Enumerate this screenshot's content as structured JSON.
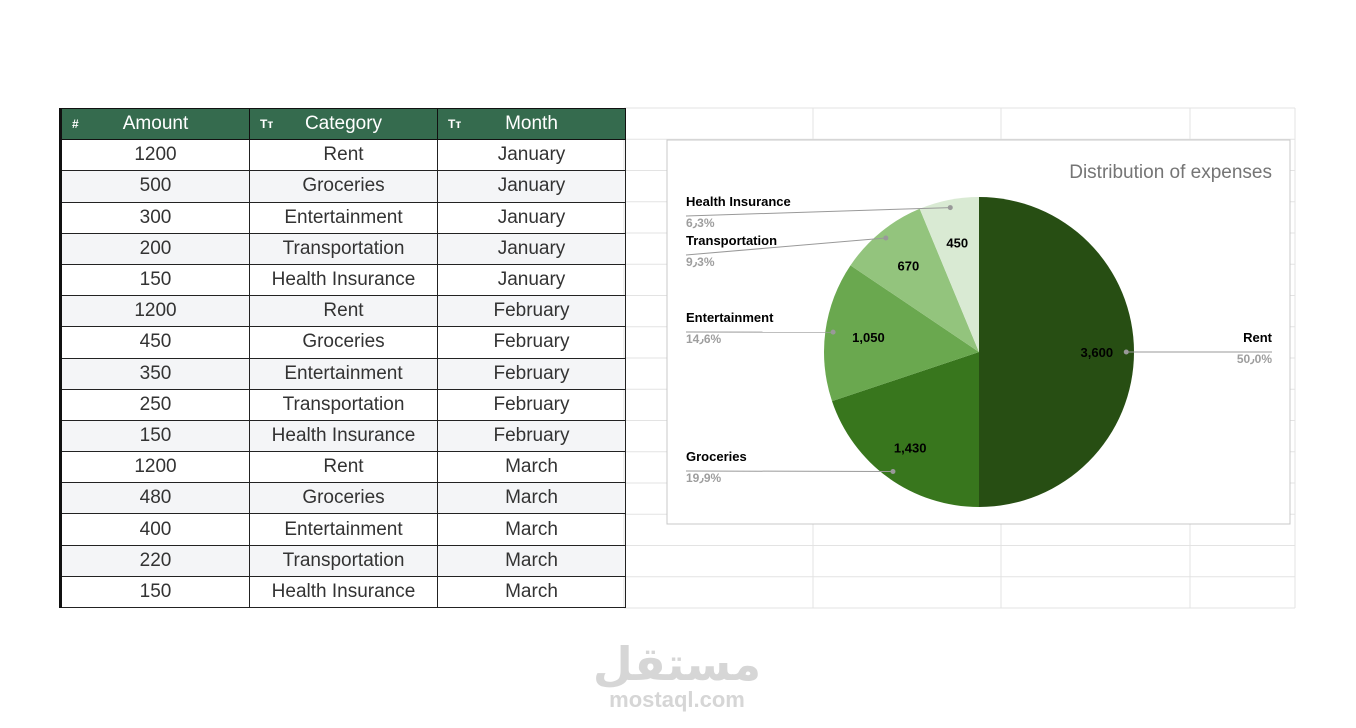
{
  "table": {
    "header": [
      {
        "icon": "#",
        "label": "Amount"
      },
      {
        "icon": "Tт",
        "label": "Category"
      },
      {
        "icon": "Tт",
        "label": "Month"
      }
    ],
    "rows": [
      [
        1200,
        "Rent",
        "January"
      ],
      [
        500,
        "Groceries",
        "January"
      ],
      [
        300,
        "Entertainment",
        "January"
      ],
      [
        200,
        "Transportation",
        "January"
      ],
      [
        150,
        "Health Insurance",
        "January"
      ],
      [
        1200,
        "Rent",
        "February"
      ],
      [
        450,
        "Groceries",
        "February"
      ],
      [
        350,
        "Entertainment",
        "February"
      ],
      [
        250,
        "Transportation",
        "February"
      ],
      [
        150,
        "Health Insurance",
        "February"
      ],
      [
        1200,
        "Rent",
        "March"
      ],
      [
        480,
        "Groceries",
        "March"
      ],
      [
        400,
        "Entertainment",
        "March"
      ],
      [
        220,
        "Transportation",
        "March"
      ],
      [
        150,
        "Health Insurance",
        "March"
      ]
    ]
  },
  "chart_data": {
    "type": "pie",
    "title": "Distribution of expenses",
    "categories": [
      "Rent",
      "Groceries",
      "Entertainment",
      "Transportation",
      "Health Insurance"
    ],
    "values": [
      3600,
      1430,
      1050,
      670,
      450
    ],
    "value_labels": [
      "3,600",
      "1,430",
      "1,050",
      "670",
      "450"
    ],
    "percent_labels": [
      "50٫0%",
      "19٫9%",
      "14٫6%",
      "9٫3%",
      "6٫3%"
    ],
    "colors": [
      "#274e13",
      "#38761d",
      "#6aa84f",
      "#93c47d",
      "#d9ead3"
    ]
  },
  "watermark": {
    "logo": "مستقل",
    "site": "mostaql.com"
  }
}
